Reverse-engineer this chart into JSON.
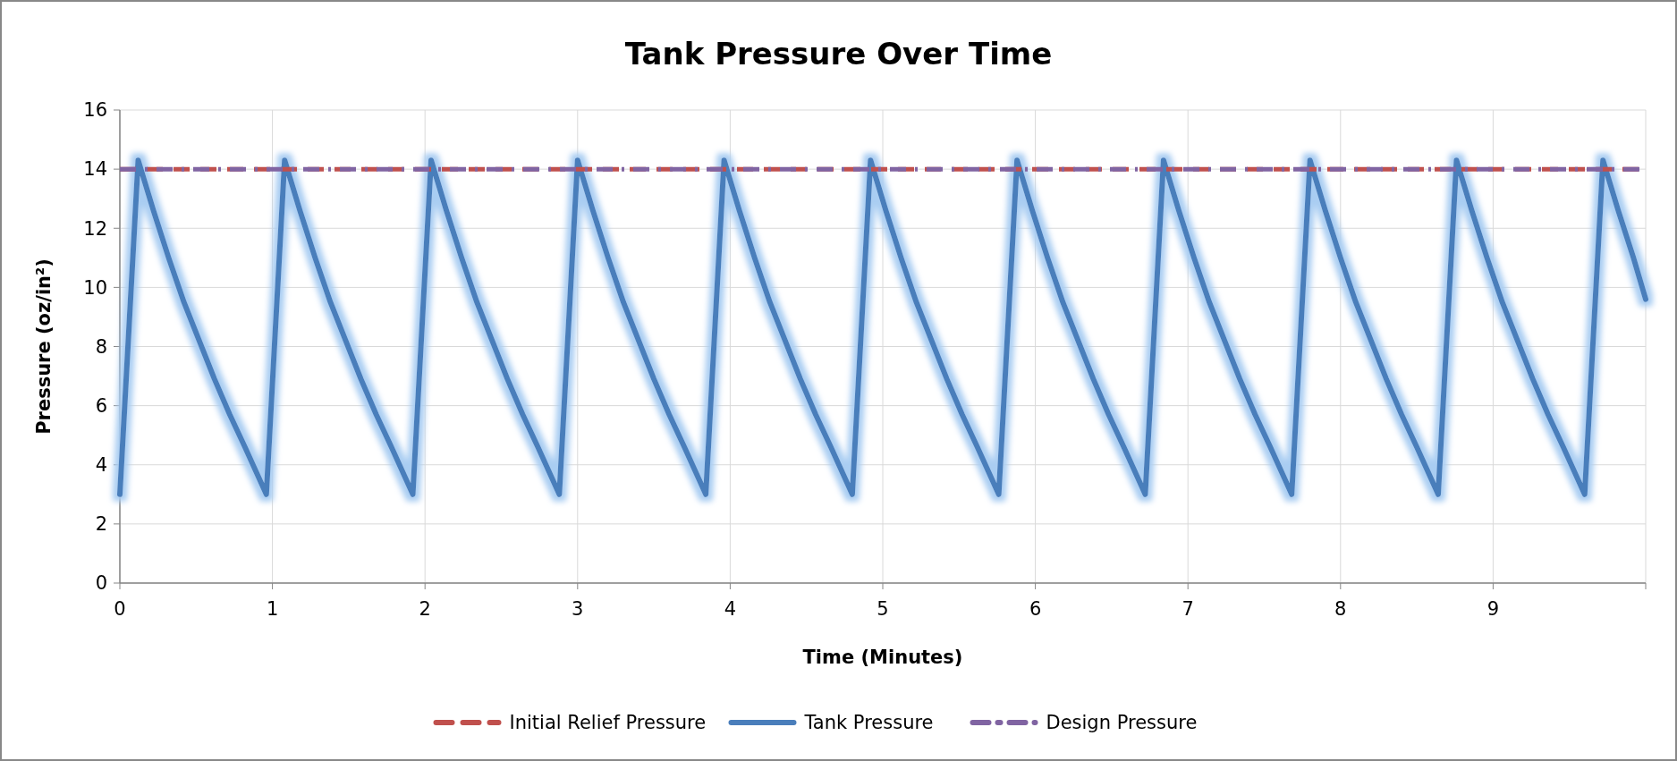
{
  "chart_data": {
    "type": "line",
    "title": "Tank Pressure Over Time",
    "xlabel": "Time (Minutes)",
    "ylabel": "Pressure (oz/in²)",
    "xlim": [
      0,
      10
    ],
    "xticks": [
      0,
      1,
      2,
      3,
      4,
      5,
      6,
      7,
      8,
      9,
      {
        "value": 10,
        "label": null
      }
    ],
    "ylim": [
      0,
      16
    ],
    "yticks": [
      0,
      2,
      4,
      6,
      8,
      10,
      12,
      14,
      16
    ],
    "grid": true,
    "legend": "bottom",
    "marker": "none",
    "series": [
      {
        "name": "Initial Relief Pressure",
        "color": "#c0504d",
        "line_style": "dashed",
        "x": [
          0,
          10
        ],
        "values": [
          14,
          14
        ]
      },
      {
        "name": "Tank Pressure",
        "color": "#4a7ebb",
        "line_style": "solid",
        "x": [
          0,
          0.12,
          0.22,
          0.32,
          0.42,
          0.52,
          0.62,
          0.72,
          0.82,
          0.96,
          1.08,
          1.18,
          1.28,
          1.38,
          1.48,
          1.58,
          1.68,
          1.78,
          1.92,
          2.04,
          2.14,
          2.24,
          2.34,
          2.44,
          2.54,
          2.64,
          2.74,
          2.88,
          3.0,
          3.1,
          3.2,
          3.3,
          3.4,
          3.5,
          3.6,
          3.7,
          3.84,
          3.96,
          4.06,
          4.16,
          4.26,
          4.36,
          4.46,
          4.56,
          4.66,
          4.8,
          4.92,
          5.02,
          5.12,
          5.22,
          5.32,
          5.42,
          5.52,
          5.62,
          5.76,
          5.88,
          5.98,
          6.08,
          6.18,
          6.28,
          6.38,
          6.48,
          6.58,
          6.72,
          6.84,
          6.94,
          7.04,
          7.14,
          7.24,
          7.34,
          7.44,
          7.54,
          7.68,
          7.8,
          7.9,
          8.0,
          8.1,
          8.2,
          8.3,
          8.4,
          8.5,
          8.64,
          8.76,
          8.86,
          8.96,
          9.06,
          9.16,
          9.26,
          9.36,
          9.46,
          9.6,
          9.72,
          9.82,
          9.92,
          10
        ],
        "values": [
          3.0,
          14.3,
          12.6,
          11.0,
          9.5,
          8.2,
          6.9,
          5.7,
          4.6,
          3.0,
          14.3,
          12.6,
          11.0,
          9.5,
          8.2,
          6.9,
          5.7,
          4.6,
          3.0,
          14.3,
          12.6,
          11.0,
          9.5,
          8.2,
          6.9,
          5.7,
          4.6,
          3.0,
          14.3,
          12.6,
          11.0,
          9.5,
          8.2,
          6.9,
          5.7,
          4.6,
          3.0,
          14.3,
          12.6,
          11.0,
          9.5,
          8.2,
          6.9,
          5.7,
          4.6,
          3.0,
          14.3,
          12.6,
          11.0,
          9.5,
          8.2,
          6.9,
          5.7,
          4.6,
          3.0,
          14.3,
          12.6,
          11.0,
          9.5,
          8.2,
          6.9,
          5.7,
          4.6,
          3.0,
          14.3,
          12.6,
          11.0,
          9.5,
          8.2,
          6.9,
          5.7,
          4.6,
          3.0,
          14.3,
          12.6,
          11.0,
          9.5,
          8.2,
          6.9,
          5.7,
          4.6,
          3.0,
          14.3,
          12.6,
          11.0,
          9.5,
          8.2,
          6.9,
          5.7,
          4.6,
          3.0,
          14.3,
          12.6,
          11.0,
          9.6
        ]
      },
      {
        "name": "Design Pressure",
        "color": "#8064a2",
        "line_style": "dashdot",
        "x": [
          0,
          10
        ],
        "values": [
          14,
          14
        ]
      }
    ]
  }
}
